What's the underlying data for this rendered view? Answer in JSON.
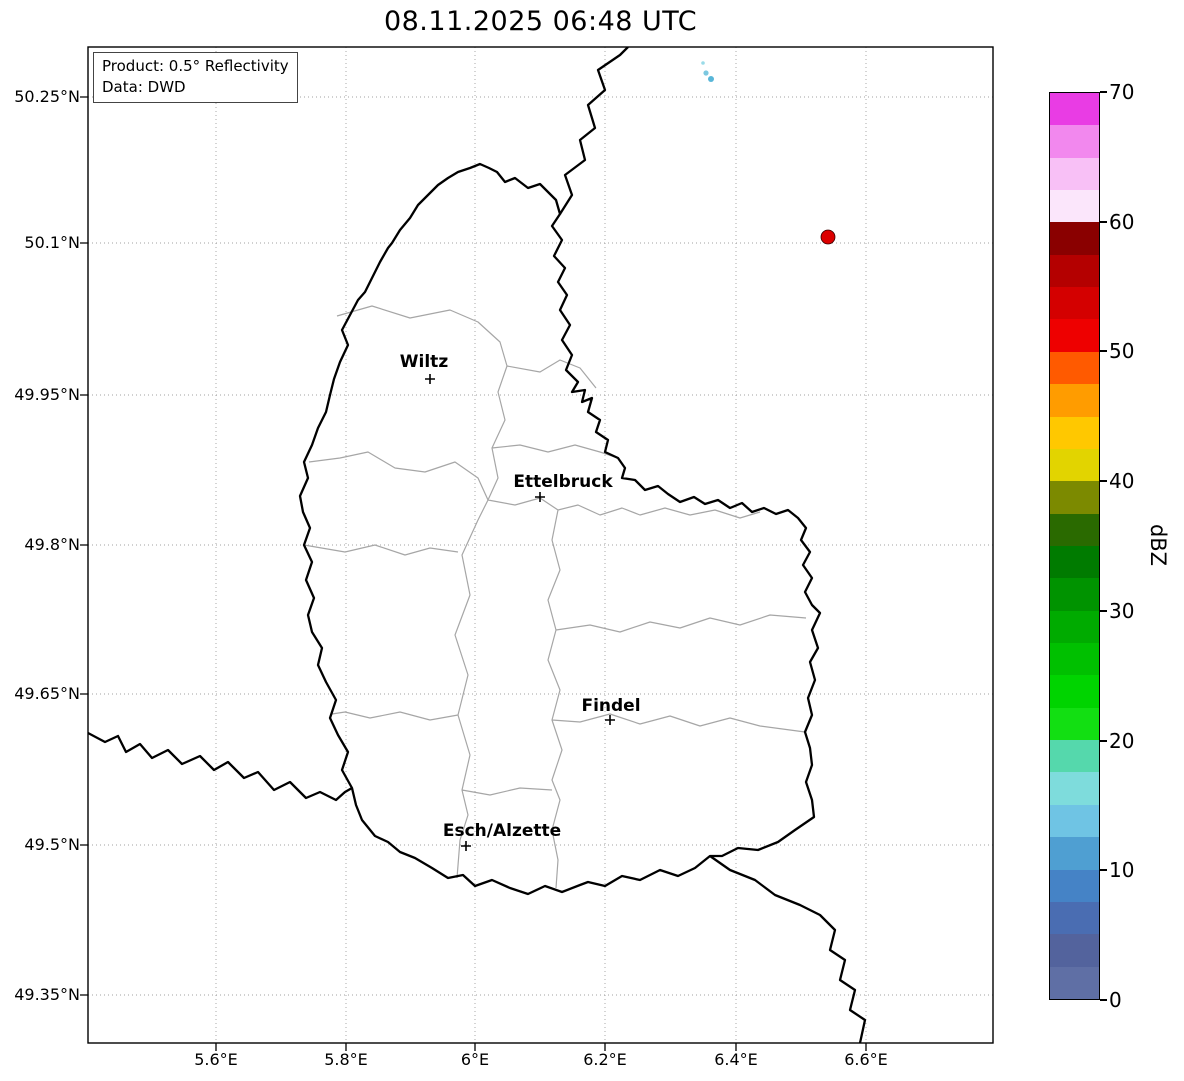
{
  "title": "08.11.2025 06:48 UTC",
  "info_box": {
    "product": "Product: 0.5° Reflectivity",
    "source": "Data: DWD"
  },
  "axes": {
    "x_ticks": [
      "5.6°E",
      "5.8°E",
      "6°E",
      "6.2°E",
      "6.4°E",
      "6.6°E"
    ],
    "y_ticks": [
      "50.25°N",
      "50.1°N",
      "49.95°N",
      "49.8°N",
      "49.65°N",
      "49.5°N",
      "49.35°N"
    ]
  },
  "cities": [
    {
      "name": "Wiltz"
    },
    {
      "name": "Ettelbruck"
    },
    {
      "name": "Findel"
    },
    {
      "name": "Esch/Alzette"
    }
  ],
  "colorbar": {
    "label": "dBZ",
    "tick_labels": [
      "0",
      "10",
      "20",
      "30",
      "40",
      "50",
      "60",
      "70"
    ],
    "unit_min": 0,
    "unit_max": 70,
    "colors_bottom_to_top": [
      "#5f6fa5",
      "#53639d",
      "#4a6db2",
      "#4583c6",
      "#4f9fd2",
      "#6fc4e4",
      "#7edcdc",
      "#55d8ac",
      "#12df12",
      "#00d400",
      "#00c000",
      "#00ab00",
      "#009300",
      "#007b00",
      "#2a6a00",
      "#7c8a00",
      "#e2d400",
      "#ffc800",
      "#ff9c00",
      "#ff5a00",
      "#ee0000",
      "#d40000",
      "#b40000",
      "#8a0000",
      "#fbe6fb",
      "#f8c0f6",
      "#f288ee",
      "#e93ce4"
    ]
  },
  "echo_colors": {
    "strong": "#dc0000",
    "light": [
      "#9adbe8",
      "#7cc8e0",
      "#58b6d8"
    ]
  }
}
